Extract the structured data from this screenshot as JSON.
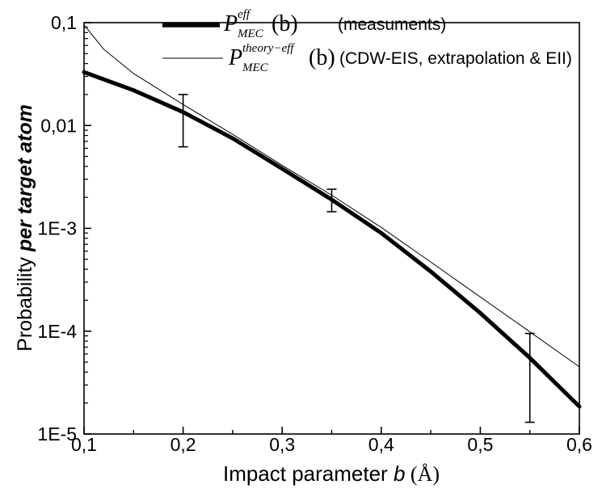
{
  "chart_data": {
    "type": "line",
    "xscale": "linear",
    "yscale": "log",
    "xlim": [
      0.1,
      0.6
    ],
    "ylim": [
      1e-05,
      0.1
    ],
    "xticks": [
      {
        "value": 0.1,
        "label": "0,1"
      },
      {
        "value": 0.2,
        "label": "0,2"
      },
      {
        "value": 0.3,
        "label": "0,3"
      },
      {
        "value": 0.4,
        "label": "0,4"
      },
      {
        "value": 0.5,
        "label": "0,5"
      },
      {
        "value": 0.6,
        "label": "0,6"
      }
    ],
    "yticks": [
      {
        "value": 0.1,
        "label": "0,1"
      },
      {
        "value": 0.01,
        "label": "0,01"
      },
      {
        "value": 0.001,
        "label": "1E-3"
      },
      {
        "value": 0.0001,
        "label": "1E-4"
      },
      {
        "value": 1e-05,
        "label": "1E-5"
      }
    ],
    "xlabel": {
      "prefix": "Impact parameter ",
      "var": "b",
      "unit": " (Å)"
    },
    "ylabel": {
      "prefix": "Probability ",
      "emph": "per target atom"
    },
    "legend": {
      "placement": "top",
      "entries": [
        {
          "symbol": "P",
          "sub": "MEC",
          "sup": "eff",
          "arg": "(b)",
          "note": "(measuments)"
        },
        {
          "symbol": "P",
          "sub": "MEC",
          "sup": "theory−eff",
          "arg": "(b)",
          "note": "(CDW-EIS, extrapolation & EII)"
        }
      ]
    },
    "series": [
      {
        "style": "thick",
        "color": "#000000",
        "x": [
          0.1,
          0.15,
          0.2,
          0.25,
          0.3,
          0.35,
          0.4,
          0.45,
          0.5,
          0.55,
          0.6
        ],
        "y": [
          0.033,
          0.022,
          0.0135,
          0.0075,
          0.0038,
          0.0019,
          0.0009,
          0.00038,
          0.00015,
          5.5e-05,
          1.85e-05
        ]
      },
      {
        "style": "thin",
        "color": "#000000",
        "x": [
          0.1,
          0.12,
          0.15,
          0.2,
          0.25,
          0.3,
          0.35,
          0.4,
          0.45,
          0.5,
          0.55,
          0.6
        ],
        "y": [
          0.095,
          0.055,
          0.032,
          0.016,
          0.0082,
          0.0041,
          0.0021,
          0.00102,
          0.00047,
          0.000215,
          9.85e-05,
          4.5e-05
        ]
      }
    ],
    "error_bars": [
      {
        "x": 0.2,
        "low": 0.0062,
        "high": 0.02
      },
      {
        "x": 0.35,
        "low": 0.00145,
        "high": 0.0024
      },
      {
        "x": 0.55,
        "low": 1.3e-05,
        "high": 9.5e-05
      }
    ]
  }
}
